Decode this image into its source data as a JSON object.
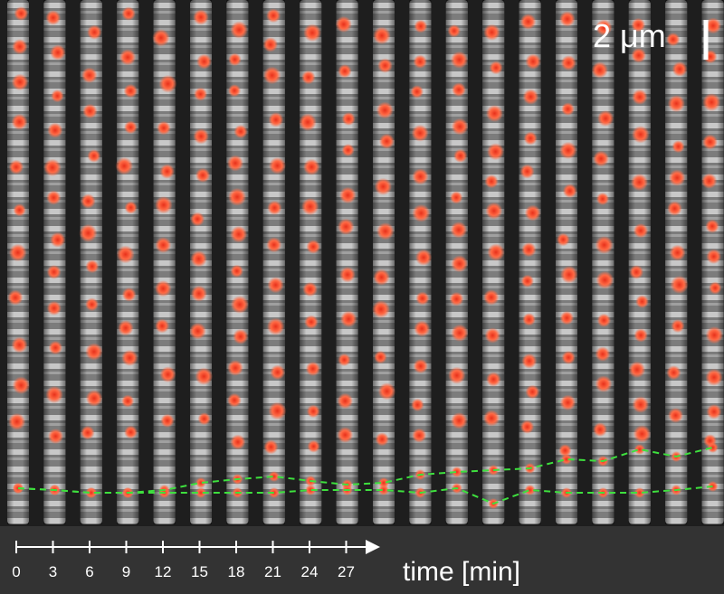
{
  "scale_bar": {
    "label": "2 μm"
  },
  "time_axis": {
    "label": "time [min]",
    "ticks": [
      0,
      3,
      6,
      9,
      12,
      15,
      18,
      21,
      24,
      27
    ]
  }
}
